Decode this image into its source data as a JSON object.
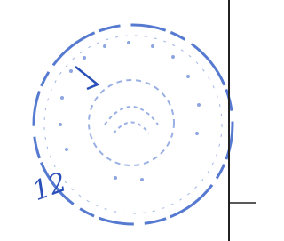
{
  "stamp": {
    "handwritten": "12"
  }
}
